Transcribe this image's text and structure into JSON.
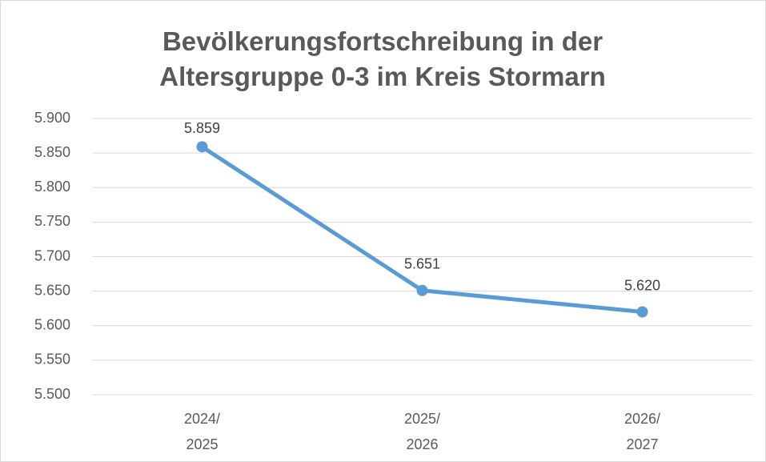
{
  "chart_data": {
    "type": "line",
    "title": "Bevölkerungsfortschreibung in der Altersgruppe 0-3 im Kreis Stormarn",
    "categories": [
      "2024/ 2025",
      "2025/ 2026",
      "2026/ 2027"
    ],
    "values": [
      5859,
      5651,
      5620
    ],
    "value_labels": [
      "5.859",
      "5.651",
      "5.620"
    ],
    "color": "#5b9bd5",
    "ylim": [
      5500,
      5900
    ],
    "yticks": [
      {
        "value": 5500,
        "label": "5.500"
      },
      {
        "value": 5550,
        "label": "5.550"
      },
      {
        "value": 5600,
        "label": "5.600"
      },
      {
        "value": 5650,
        "label": "5.650"
      },
      {
        "value": 5700,
        "label": "5.700"
      },
      {
        "value": 5750,
        "label": "5.750"
      },
      {
        "value": 5800,
        "label": "5.800"
      },
      {
        "value": 5850,
        "label": "5.850"
      },
      {
        "value": 5900,
        "label": "5.900"
      }
    ],
    "grid": true
  }
}
